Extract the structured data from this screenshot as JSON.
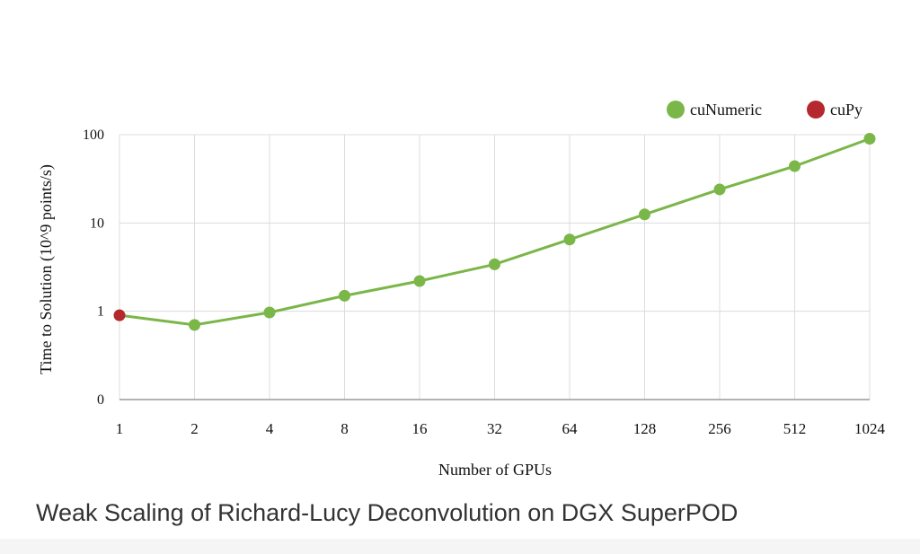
{
  "chart_data": {
    "type": "line",
    "title": "Weak Scaling of Richard-Lucy Deconvolution on DGX SuperPOD",
    "x_label": "Number of GPUs",
    "y_label": "Time to Solution (10^9 points/s)",
    "categories": [
      "1",
      "2",
      "4",
      "8",
      "16",
      "32",
      "64",
      "128",
      "256",
      "512",
      "1024"
    ],
    "series": [
      {
        "name": "cuNumeric",
        "color": "#7ab648",
        "values": [
          0.9,
          0.7,
          0.97,
          1.5,
          2.2,
          3.4,
          6.5,
          12.5,
          24,
          44,
          90
        ]
      },
      {
        "name": "cuPy",
        "color": "#b5282e",
        "values": [
          0.9,
          null,
          null,
          null,
          null,
          null,
          null,
          null,
          null,
          null,
          null
        ]
      }
    ],
    "ylim": [
      0.1,
      100
    ],
    "yticks": [
      {
        "value": 0.1,
        "label": "0"
      },
      1,
      10,
      100
    ],
    "log_y": true,
    "grid": true,
    "legend": "top-right"
  }
}
